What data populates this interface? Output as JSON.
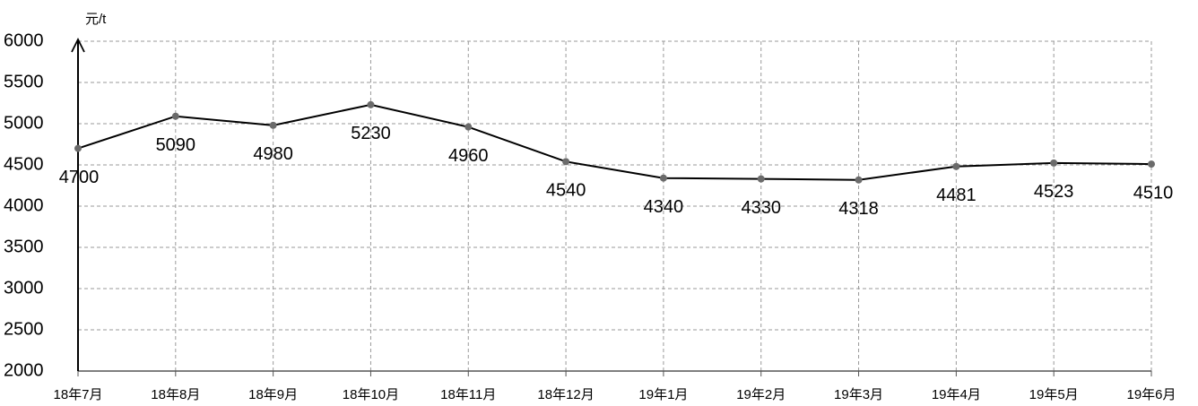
{
  "chart_data": {
    "type": "line",
    "y_axis_label": "元/t",
    "categories": [
      "18年7月",
      "18年8月",
      "18年9月",
      "18年10月",
      "18年11月",
      "18年12月",
      "19年1月",
      "19年2月",
      "19年3月",
      "19年4月",
      "19年5月",
      "19年6月"
    ],
    "values": [
      4700,
      5090,
      4980,
      5230,
      4960,
      4540,
      4340,
      4330,
      4318,
      4481,
      4523,
      4510
    ],
    "color": "#000000",
    "marker_color": "#6b6b6b",
    "ylim": [
      2000,
      6000
    ],
    "yticks": [
      2000,
      2500,
      3000,
      3500,
      4000,
      4500,
      5000,
      5500,
      6000
    ],
    "grid": true
  }
}
